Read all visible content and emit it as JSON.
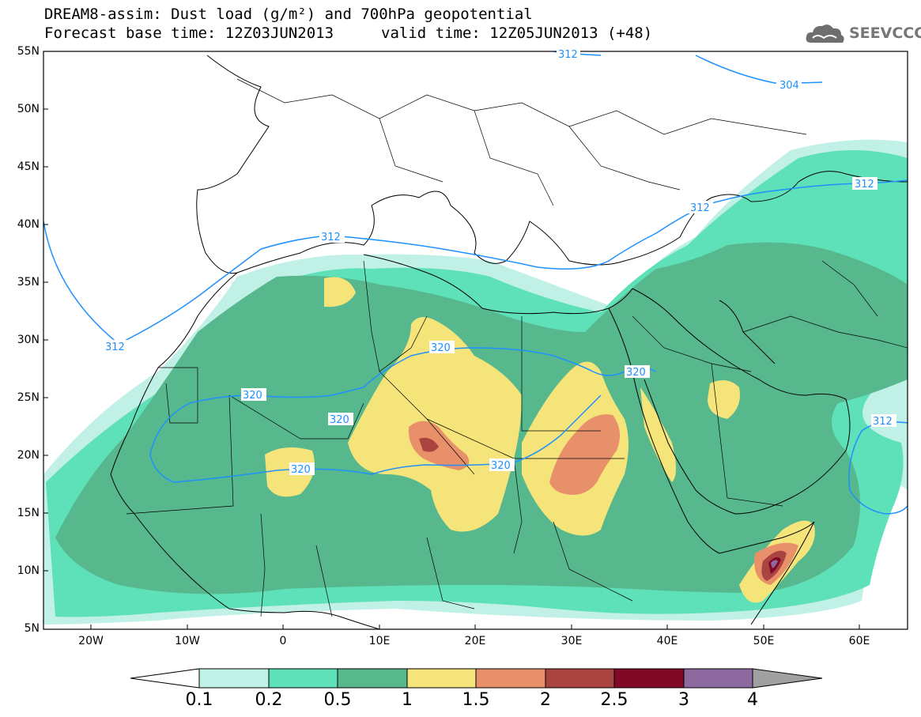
{
  "title_line1": "DREAM8-assim: Dust load (g/m²) and 700hPa geopotential",
  "title_base": "Forecast base time: 12Z03JUN2013",
  "title_valid": "valid time: 12Z05JUN2013 (+48)",
  "logo": {
    "text": "SEEVCCC",
    "icon": "cloud-icon"
  },
  "map": {
    "lon_range": [
      -25,
      65
    ],
    "lat_range": [
      5,
      55
    ],
    "lat_labels": [
      "55N",
      "50N",
      "45N",
      "40N",
      "35N",
      "30N",
      "25N",
      "20N",
      "15N",
      "10N",
      "5N"
    ],
    "lon_labels": [
      "20W",
      "10W",
      "0",
      "10E",
      "20E",
      "30E",
      "40E",
      "50E",
      "60E"
    ],
    "contour_labels": [
      "312",
      "304",
      "312",
      "312",
      "312",
      "320",
      "320",
      "320",
      "320",
      "320",
      "312"
    ]
  },
  "colorbar": {
    "levels": [
      "0.1",
      "0.2",
      "0.5",
      "1",
      "1.5",
      "2",
      "2.5",
      "3",
      "4"
    ],
    "colors": [
      "#ffffff",
      "#c0f0e6",
      "#5ee0b8",
      "#57b88e",
      "#f5e47a",
      "#e8906a",
      "#aa4440",
      "#820828",
      "#8c6aa0",
      "#a0a0a0"
    ]
  }
}
